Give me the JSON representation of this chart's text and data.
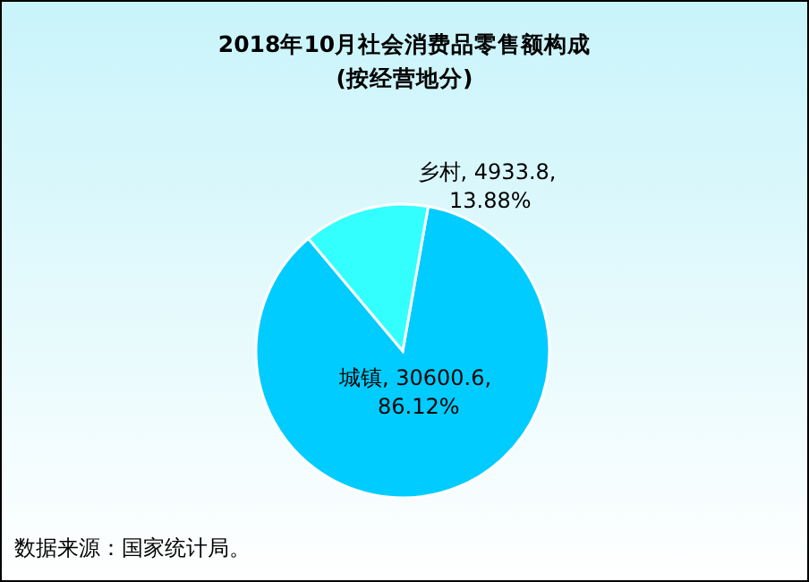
{
  "chart_data": {
    "type": "pie",
    "title": "2018年10月社会消费品零售额构成",
    "subtitle": "(按经营地分)",
    "categories": [
      "城镇",
      "乡村"
    ],
    "values": [
      30600.6,
      4933.8
    ],
    "value_labels": [
      "30600.6, 86.12%",
      "4933.8, 13.88%"
    ],
    "colors": [
      "#00ccff",
      "#33ffff"
    ],
    "annotations": [
      "数据来源：国家统计局。"
    ]
  }
}
